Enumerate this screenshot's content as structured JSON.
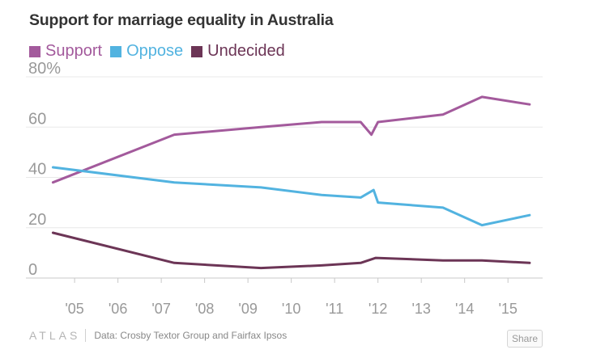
{
  "chart_data": {
    "type": "line",
    "title": "Support for marriage equality in Australia",
    "xlabel": "",
    "ylabel": "",
    "ylim": [
      0,
      80
    ],
    "xlim": [
      2004.4,
      2015.8
    ],
    "yticks": [
      0,
      20,
      40,
      60,
      80
    ],
    "ytick_labels": [
      "0",
      "20",
      "40",
      "60",
      "80%"
    ],
    "xticks": [
      2005,
      2006,
      2007,
      2008,
      2009,
      2010,
      2011,
      2012,
      2013,
      2014,
      2015
    ],
    "xtick_labels": [
      "'05",
      "'06",
      "'07",
      "'08",
      "'09",
      "'10",
      "'11",
      "'12",
      "'13",
      "'14",
      "'15"
    ],
    "grid": "horizontal",
    "legend_position": "top-left",
    "series": [
      {
        "name": "Support",
        "color": "#a35a9c",
        "x": [
          2004.5,
          2007.3,
          2009.3,
          2010.7,
          2011.6,
          2011.85,
          2012.0,
          2013.5,
          2014.4,
          2015.5
        ],
        "values": [
          38,
          57,
          60,
          62,
          62,
          57,
          62,
          65,
          72,
          69
        ]
      },
      {
        "name": "Oppose",
        "color": "#52b3e0",
        "x": [
          2004.5,
          2007.3,
          2009.3,
          2010.7,
          2011.6,
          2011.9,
          2012.0,
          2013.5,
          2014.4,
          2015.5
        ],
        "values": [
          44,
          38,
          36,
          33,
          32,
          35,
          30,
          28,
          21,
          25
        ]
      },
      {
        "name": "Undecided",
        "color": "#6c3556",
        "x": [
          2004.5,
          2007.3,
          2009.3,
          2010.7,
          2011.6,
          2011.95,
          2013.5,
          2014.4,
          2015.5
        ],
        "values": [
          18,
          6,
          4,
          5,
          6,
          8,
          7,
          7,
          6
        ]
      }
    ]
  },
  "footer": {
    "brand": "ATLAS",
    "source": "Data: Crosby Textor Group and Fairfax Ipsos",
    "share_label": "Share"
  }
}
